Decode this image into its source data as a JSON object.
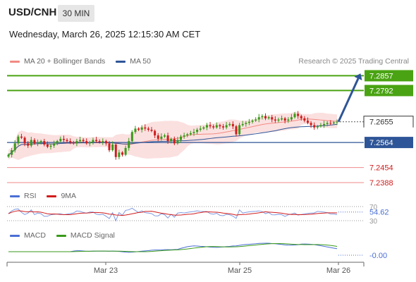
{
  "header": {
    "symbol": "USD/CNH",
    "timeframe": "30 MIN",
    "datetime": "Wednesday, March 26, 2025 12:15:30 AM CET"
  },
  "legend_main": {
    "items": [
      {
        "label": "MA 20 + Bollinger Bands",
        "color": "#f28b82"
      },
      {
        "label": "MA 50",
        "color": "#2e5597"
      }
    ],
    "copyright": "Research © 2025 Trading Central"
  },
  "legend_rsi": {
    "items": [
      {
        "label": "RSI",
        "color": "#4a6fd4"
      },
      {
        "label": "9MA",
        "color": "#d01c1c"
      }
    ]
  },
  "legend_macd": {
    "items": [
      {
        "label": "MACD",
        "color": "#4a6fd4"
      },
      {
        "label": "MACD Signal",
        "color": "#3a9a1a"
      }
    ]
  },
  "colors": {
    "up": "#3a9a1a",
    "down": "#d01c1c",
    "resistance": "#4aa313",
    "support_red": "#f08a8a",
    "pivot_blue": "#2e5597",
    "bollinger": "#fbe0e0",
    "ma50": "#2e5597",
    "ma20": "#f28b82"
  },
  "chart_data": [
    {
      "type": "candlestick",
      "x_labels": [
        "Mar 23",
        "Mar 25",
        "Mar 26"
      ],
      "ylim": [
        7.236,
        7.288
      ],
      "last_price": 7.2655,
      "levels": [
        {
          "value": 7.2857,
          "label": "7.2857",
          "style": "resistance"
        },
        {
          "value": 7.2792,
          "label": "7.2792",
          "style": "resistance"
        },
        {
          "value": 7.2655,
          "label": "7.2655",
          "style": "current"
        },
        {
          "value": 7.2564,
          "label": "7.2564",
          "style": "pivot"
        },
        {
          "value": 7.2454,
          "label": "7.2454",
          "style": "support"
        },
        {
          "value": 7.2388,
          "label": "7.2388",
          "style": "support"
        }
      ],
      "target_arrow": {
        "from": 7.2655,
        "to": 7.2857
      },
      "closes": [
        7.251,
        7.253,
        7.256,
        7.259,
        7.2585,
        7.256,
        7.255,
        7.2575,
        7.256,
        7.2565,
        7.257,
        7.2555,
        7.2545,
        7.255,
        7.256,
        7.257,
        7.258,
        7.2575,
        7.257,
        7.2565,
        7.256,
        7.257,
        7.2575,
        7.257,
        7.256,
        7.2565,
        7.2575,
        7.257,
        7.2565,
        7.257,
        7.256,
        7.253,
        7.2555,
        7.25,
        7.252,
        7.251,
        7.254,
        7.257,
        7.261,
        7.2625,
        7.262,
        7.263,
        7.2625,
        7.262,
        7.2615,
        7.2595,
        7.258,
        7.259,
        7.2595,
        7.257,
        7.258,
        7.256,
        7.2575,
        7.259,
        7.2595,
        7.26,
        7.2605,
        7.261,
        7.262,
        7.2625,
        7.263,
        7.264,
        7.2635,
        7.263,
        7.264,
        7.2635,
        7.263,
        7.264,
        7.2645,
        7.2635,
        7.26,
        7.264,
        7.2645,
        7.265,
        7.2655,
        7.266,
        7.2665,
        7.2675,
        7.268,
        7.267,
        7.2675,
        7.2665,
        7.266,
        7.2665,
        7.267,
        7.266,
        7.2665,
        7.2675,
        7.269,
        7.268,
        7.267,
        7.266,
        7.265,
        7.264,
        7.263,
        7.2635,
        7.264,
        7.2645,
        7.265,
        7.2648,
        7.2652,
        7.2655
      ]
    },
    {
      "type": "line",
      "name": "RSI",
      "y_ticks": [
        70,
        30
      ],
      "last_value": "54.62",
      "ylim": [
        20,
        80
      ]
    },
    {
      "type": "line",
      "name": "MACD",
      "last_value": "-0.00"
    }
  ]
}
